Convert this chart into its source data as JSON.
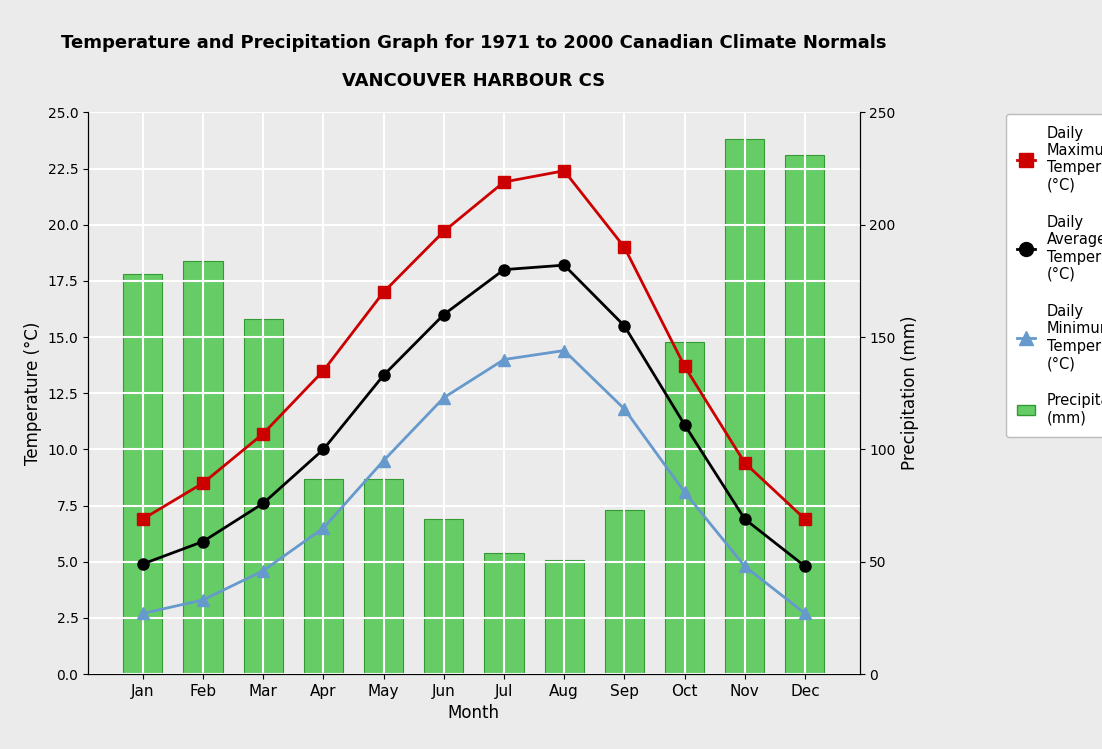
{
  "title_line1": "Temperature and Precipitation Graph for 1971 to 2000 Canadian Climate Normals",
  "title_line2": "VANCOUVER HARBOUR CS",
  "months": [
    "Jan",
    "Feb",
    "Mar",
    "Apr",
    "May",
    "Jun",
    "Jul",
    "Aug",
    "Sep",
    "Oct",
    "Nov",
    "Dec"
  ],
  "daily_max": [
    6.9,
    8.5,
    10.7,
    13.5,
    17.0,
    19.7,
    21.9,
    22.4,
    19.0,
    13.7,
    9.4,
    6.9
  ],
  "daily_avg": [
    4.9,
    5.9,
    7.6,
    10.0,
    13.3,
    16.0,
    18.0,
    18.2,
    15.5,
    11.1,
    6.9,
    4.8
  ],
  "daily_min": [
    2.7,
    3.3,
    4.6,
    6.5,
    9.5,
    12.3,
    14.0,
    14.4,
    11.8,
    8.1,
    4.8,
    2.7
  ],
  "precipitation": [
    178,
    184,
    158,
    87,
    87,
    69,
    54,
    51,
    73,
    148,
    238,
    231
  ],
  "temp_ylim": [
    0.0,
    25.0
  ],
  "precip_ylim": [
    0,
    250
  ],
  "temp_yticks": [
    0.0,
    2.5,
    5.0,
    7.5,
    10.0,
    12.5,
    15.0,
    17.5,
    20.0,
    22.5,
    25.0
  ],
  "precip_yticks": [
    0,
    50,
    100,
    150,
    200,
    250
  ],
  "max_color": "#cc0000",
  "avg_color": "#000000",
  "min_color": "#6699cc",
  "bar_color": "#66cc66",
  "bar_edge_color": "#339933",
  "background_color": "#ebebeb",
  "grid_color": "#ffffff",
  "xlabel": "Month",
  "ylabel_left": "Temperature (°C)",
  "ylabel_right": "Precipitation (mm)",
  "legend_labels": [
    "Daily\nMaximum\nTemperature\n(°C)",
    "Daily\nAverage\nTemperature\n(°C)",
    "Daily\nMinimum\nTemperature\n(°C)",
    "Precipitation\n(mm)"
  ]
}
